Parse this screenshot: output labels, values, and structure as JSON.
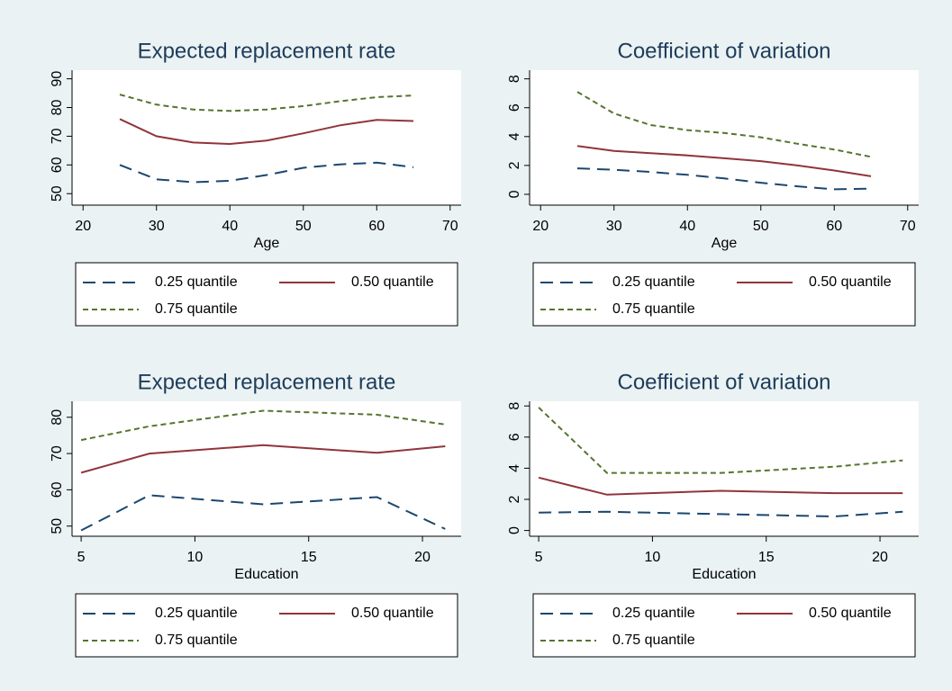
{
  "chart_data": [
    {
      "type": "line",
      "title": "Expected replacement rate",
      "x_label": "Age",
      "x": [
        25,
        30,
        35,
        40,
        45,
        50,
        55,
        60,
        65
      ],
      "xlim": [
        18.5,
        71.5
      ],
      "xticks": [
        20,
        30,
        40,
        50,
        60,
        70
      ],
      "ylim": [
        46,
        93
      ],
      "yticks": [
        50,
        60,
        70,
        80,
        90
      ],
      "series": [
        {
          "name": "0.25 quantile",
          "color": "#1a476f",
          "line_style": "longdash",
          "values": [
            60,
            55,
            54,
            54.5,
            56.5,
            59,
            60.2,
            60.8,
            59.2
          ]
        },
        {
          "name": "0.50 quantile",
          "color": "#90353b",
          "line_style": "solid",
          "values": [
            76,
            70,
            67.8,
            67.3,
            68.5,
            71,
            73.8,
            75.7,
            75.3
          ]
        },
        {
          "name": "0.75 quantile",
          "color": "#55752f",
          "line_style": "shortdash",
          "values": [
            84.5,
            81,
            79.3,
            78.8,
            79.3,
            80.5,
            82.2,
            83.6,
            84.2
          ]
        }
      ]
    },
    {
      "type": "line",
      "title": "Coefficient of variation",
      "x_label": "Age",
      "x": [
        25,
        30,
        35,
        40,
        45,
        50,
        55,
        60,
        65
      ],
      "xlim": [
        18.5,
        71.5
      ],
      "xticks": [
        20,
        30,
        40,
        50,
        60,
        70
      ],
      "ylim": [
        -0.75,
        8.6
      ],
      "yticks": [
        0,
        2,
        4,
        6,
        8
      ],
      "series": [
        {
          "name": "0.25 quantile",
          "color": "#1a476f",
          "line_style": "longdash",
          "values": [
            1.8,
            1.7,
            1.55,
            1.35,
            1.1,
            0.8,
            0.55,
            0.35,
            0.4
          ]
        },
        {
          "name": "0.50 quantile",
          "color": "#90353b",
          "line_style": "solid",
          "values": [
            3.35,
            3.0,
            2.85,
            2.7,
            2.5,
            2.3,
            2.0,
            1.65,
            1.25
          ]
        },
        {
          "name": "0.75 quantile",
          "color": "#55752f",
          "line_style": "shortdash",
          "values": [
            7.1,
            5.6,
            4.8,
            4.45,
            4.25,
            3.95,
            3.5,
            3.1,
            2.6
          ]
        }
      ]
    },
    {
      "type": "line",
      "title": "Expected replacement rate",
      "x_label": "Education",
      "x": [
        5,
        8,
        13,
        18,
        21
      ],
      "xlim": [
        4.6,
        21.7
      ],
      "xticks": [
        5,
        10,
        15,
        20
      ],
      "ylim": [
        47.2,
        84.4
      ],
      "yticks": [
        50,
        60,
        70,
        80
      ],
      "series": [
        {
          "name": "0.25 quantile",
          "color": "#1a476f",
          "line_style": "longdash",
          "values": [
            48.8,
            58.5,
            56,
            58,
            49.2
          ]
        },
        {
          "name": "0.50 quantile",
          "color": "#90353b",
          "line_style": "solid",
          "values": [
            64.7,
            70,
            72.3,
            70.2,
            72
          ]
        },
        {
          "name": "0.75 quantile",
          "color": "#55752f",
          "line_style": "shortdash",
          "values": [
            73.7,
            77.5,
            81.8,
            80.7,
            78
          ]
        }
      ]
    },
    {
      "type": "line",
      "title": "Coefficient of variation",
      "x_label": "Education",
      "x": [
        5,
        8,
        13,
        18,
        21
      ],
      "xlim": [
        4.6,
        21.7
      ],
      "xticks": [
        5,
        10,
        15,
        20
      ],
      "ylim": [
        -0.37,
        8.3
      ],
      "yticks": [
        0,
        2,
        4,
        6,
        8
      ],
      "series": [
        {
          "name": "0.25 quantile",
          "color": "#1a476f",
          "line_style": "longdash",
          "values": [
            1.15,
            1.2,
            1.05,
            0.9,
            1.2
          ]
        },
        {
          "name": "0.50 quantile",
          "color": "#90353b",
          "line_style": "solid",
          "values": [
            3.4,
            2.3,
            2.55,
            2.4,
            2.4
          ]
        },
        {
          "name": "0.75 quantile",
          "color": "#55752f",
          "line_style": "shortdash",
          "values": [
            7.9,
            3.7,
            3.7,
            4.1,
            4.5
          ]
        }
      ]
    }
  ]
}
